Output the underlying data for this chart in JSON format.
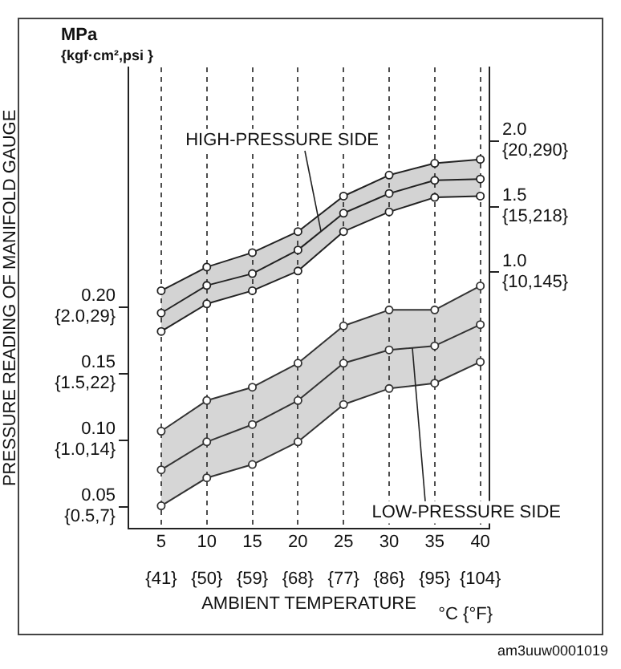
{
  "chart_data": {
    "type": "line",
    "xlabel": "AMBIENT TEMPERATURE",
    "ylabel": "PRESSURE READING OF MANIFOLD GAUGE",
    "x": [
      5,
      10,
      15,
      20,
      25,
      30,
      35,
      40
    ],
    "xlim": [
      1.4,
      41
    ],
    "xticks": [
      5,
      10,
      15,
      20,
      25,
      30,
      35,
      40
    ],
    "x2lim": [
      34.52,
      105.8
    ],
    "x2ticks": [
      {
        "value": 41,
        "label": "{41}"
      },
      {
        "value": 50,
        "label": "{50}"
      },
      {
        "value": 59,
        "label": "{59}"
      },
      {
        "value": 68,
        "label": "{68}"
      },
      {
        "value": 77,
        "label": "{77}"
      },
      {
        "value": 86,
        "label": "{86}"
      },
      {
        "value": 95,
        "label": "{95}"
      },
      {
        "value": 104,
        "label": "{104}"
      }
    ],
    "ylim": [
      0.034,
      0.38
    ],
    "yticks": [
      {
        "value": 0.05,
        "label": "0.05"
      },
      {
        "value": 0.1,
        "label": "0.10"
      },
      {
        "value": 0.15,
        "label": "0.15"
      },
      {
        "value": 0.2,
        "label": "0.20"
      }
    ],
    "y2lim": [
      -0.95,
      2.56
    ],
    "y2ticks": [
      {
        "value": 1.0,
        "label": "1.0"
      },
      {
        "value": 1.5,
        "label": "1.5"
      },
      {
        "value": 2.0,
        "label": "2.0"
      }
    ],
    "series": [
      {
        "name": "HIGH-PRESSURE SIDE",
        "color": "#222222",
        "axis": "y2",
        "values": [
          0.69,
          0.9,
          0.99,
          1.17,
          1.45,
          1.6,
          1.7,
          1.71
        ],
        "lower": [
          0.55,
          0.76,
          0.86,
          1.01,
          1.31,
          1.46,
          1.57,
          1.58
        ],
        "upper": [
          0.86,
          1.04,
          1.15,
          1.31,
          1.58,
          1.74,
          1.83,
          1.86
        ]
      },
      {
        "color": "#222222",
        "axis": "y2",
        "values": [
          0.55,
          0.76,
          0.86,
          1.01,
          1.31,
          1.46,
          1.57,
          1.58
        ]
      },
      {
        "color": "#222222",
        "axis": "y2",
        "values": [
          0.86,
          1.04,
          1.15,
          1.31,
          1.58,
          1.74,
          1.83,
          1.86
        ]
      },
      {
        "name": "LOW-PRESSURE SIDE",
        "color": "#333333",
        "values": [
          0.078,
          0.099,
          0.112,
          0.13,
          0.158,
          0.168,
          0.171,
          0.187
        ],
        "lower": [
          0.051,
          0.072,
          0.082,
          0.099,
          0.127,
          0.139,
          0.143,
          0.159
        ],
        "upper": [
          0.107,
          0.13,
          0.14,
          0.158,
          0.186,
          0.198,
          0.198,
          0.216
        ]
      },
      {
        "color": "#333333",
        "values": [
          0.051,
          0.072,
          0.082,
          0.099,
          0.127,
          0.139,
          0.143,
          0.159
        ]
      },
      {
        "color": "#333333",
        "values": [
          0.107,
          0.13,
          0.14,
          0.158,
          0.186,
          0.198,
          0.198,
          0.216
        ]
      }
    ],
    "annotations": [
      "MPa",
      "{kgf·cm²,psi }",
      "°C {°F}",
      "am3uuw0001019",
      "{0.5,7}",
      "{1.0,14}",
      "{1.5,22}",
      "{2.0,29}",
      "{10,145}",
      "{15,218}",
      "{20,290}"
    ],
    "grid": "x",
    "marker": "circle",
    "line_style": "solid",
    "legend": false
  }
}
